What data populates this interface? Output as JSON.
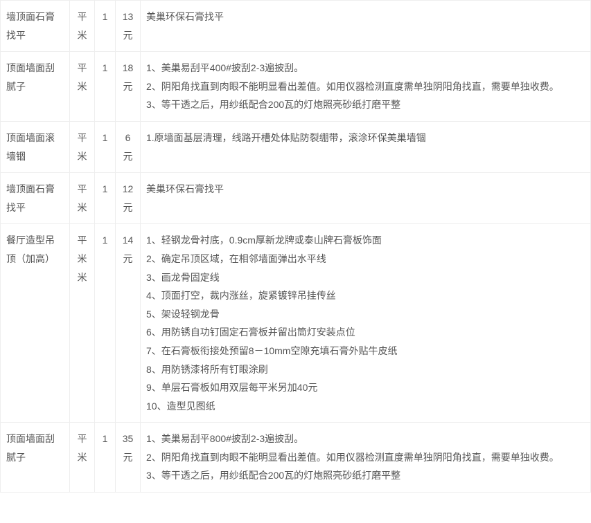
{
  "table": {
    "border_color": "#eeeeee",
    "text_color": "#555555",
    "background_color": "#ffffff",
    "font_size": 14,
    "line_height": 1.9,
    "columns": {
      "name_width": 100,
      "unit_width": 36,
      "qty_width": 30,
      "price_width": 36
    },
    "rows": [
      {
        "name": "墙顶面石膏找平",
        "unit": "平米",
        "qty": "1",
        "price": "13元",
        "desc": [
          "美巢环保石膏找平"
        ]
      },
      {
        "name": "顶面墙面刮腻子",
        "unit": "平米",
        "qty": "1",
        "price": "18元",
        "desc": [
          "1、美巢易刮平400#披刮2-3遍披刮。",
          "2、阴阳角找直到肉眼不能明显看出差值。如用仪器检测直度需单独阴阳角找直，需要单独收费。",
          "3、等干透之后，用纱纸配合200瓦的灯炮照亮砂纸打磨平整"
        ]
      },
      {
        "name": "顶面墙面滚墙锢",
        "unit": "平米",
        "qty": "1",
        "price": "6元",
        "desc": [
          "1.原墙面基层清理，线路开槽处体贴防裂绷带，滚涂环保美巢墙锢"
        ]
      },
      {
        "name": "墙顶面石膏找平",
        "unit": "平米",
        "qty": "1",
        "price": "12元",
        "desc": [
          "美巢环保石膏找平"
        ]
      },
      {
        "name": "餐厅造型吊顶（加高）",
        "unit": "平米米",
        "qty": "1",
        "price": "14元",
        "desc": [
          "1、轻钢龙骨衬底，0.9cm厚新龙牌或泰山牌石膏板饰面",
          "2、确定吊顶区域，在相邻墙面弹出水平线",
          "3、画龙骨固定线",
          "4、顶面打空，裁内涨丝，旋紧镀锌吊挂传丝",
          "5、架设轻钢龙骨",
          "6、用防锈自功钉固定石膏板并留出筒灯安装点位",
          "7、在石膏板衔接处预留8－10mm空隙充填石膏外贴牛皮纸",
          "8、用防锈漆将所有钉眼涂刷",
          "9、单层石膏板如用双层每平米另加40元",
          "10、造型见图纸"
        ]
      },
      {
        "name": "顶面墙面刮腻子",
        "unit": "平米",
        "qty": "1",
        "price": "35元",
        "desc": [
          "1、美巢易刮平800#披刮2-3遍披刮。",
          "2、阴阳角找直到肉眼不能明显看出差值。如用仪器检测直度需单独阴阳角找直，需要单独收费。",
          "3、等干透之后，用纱纸配合200瓦的灯炮照亮砂纸打磨平整"
        ]
      }
    ]
  }
}
